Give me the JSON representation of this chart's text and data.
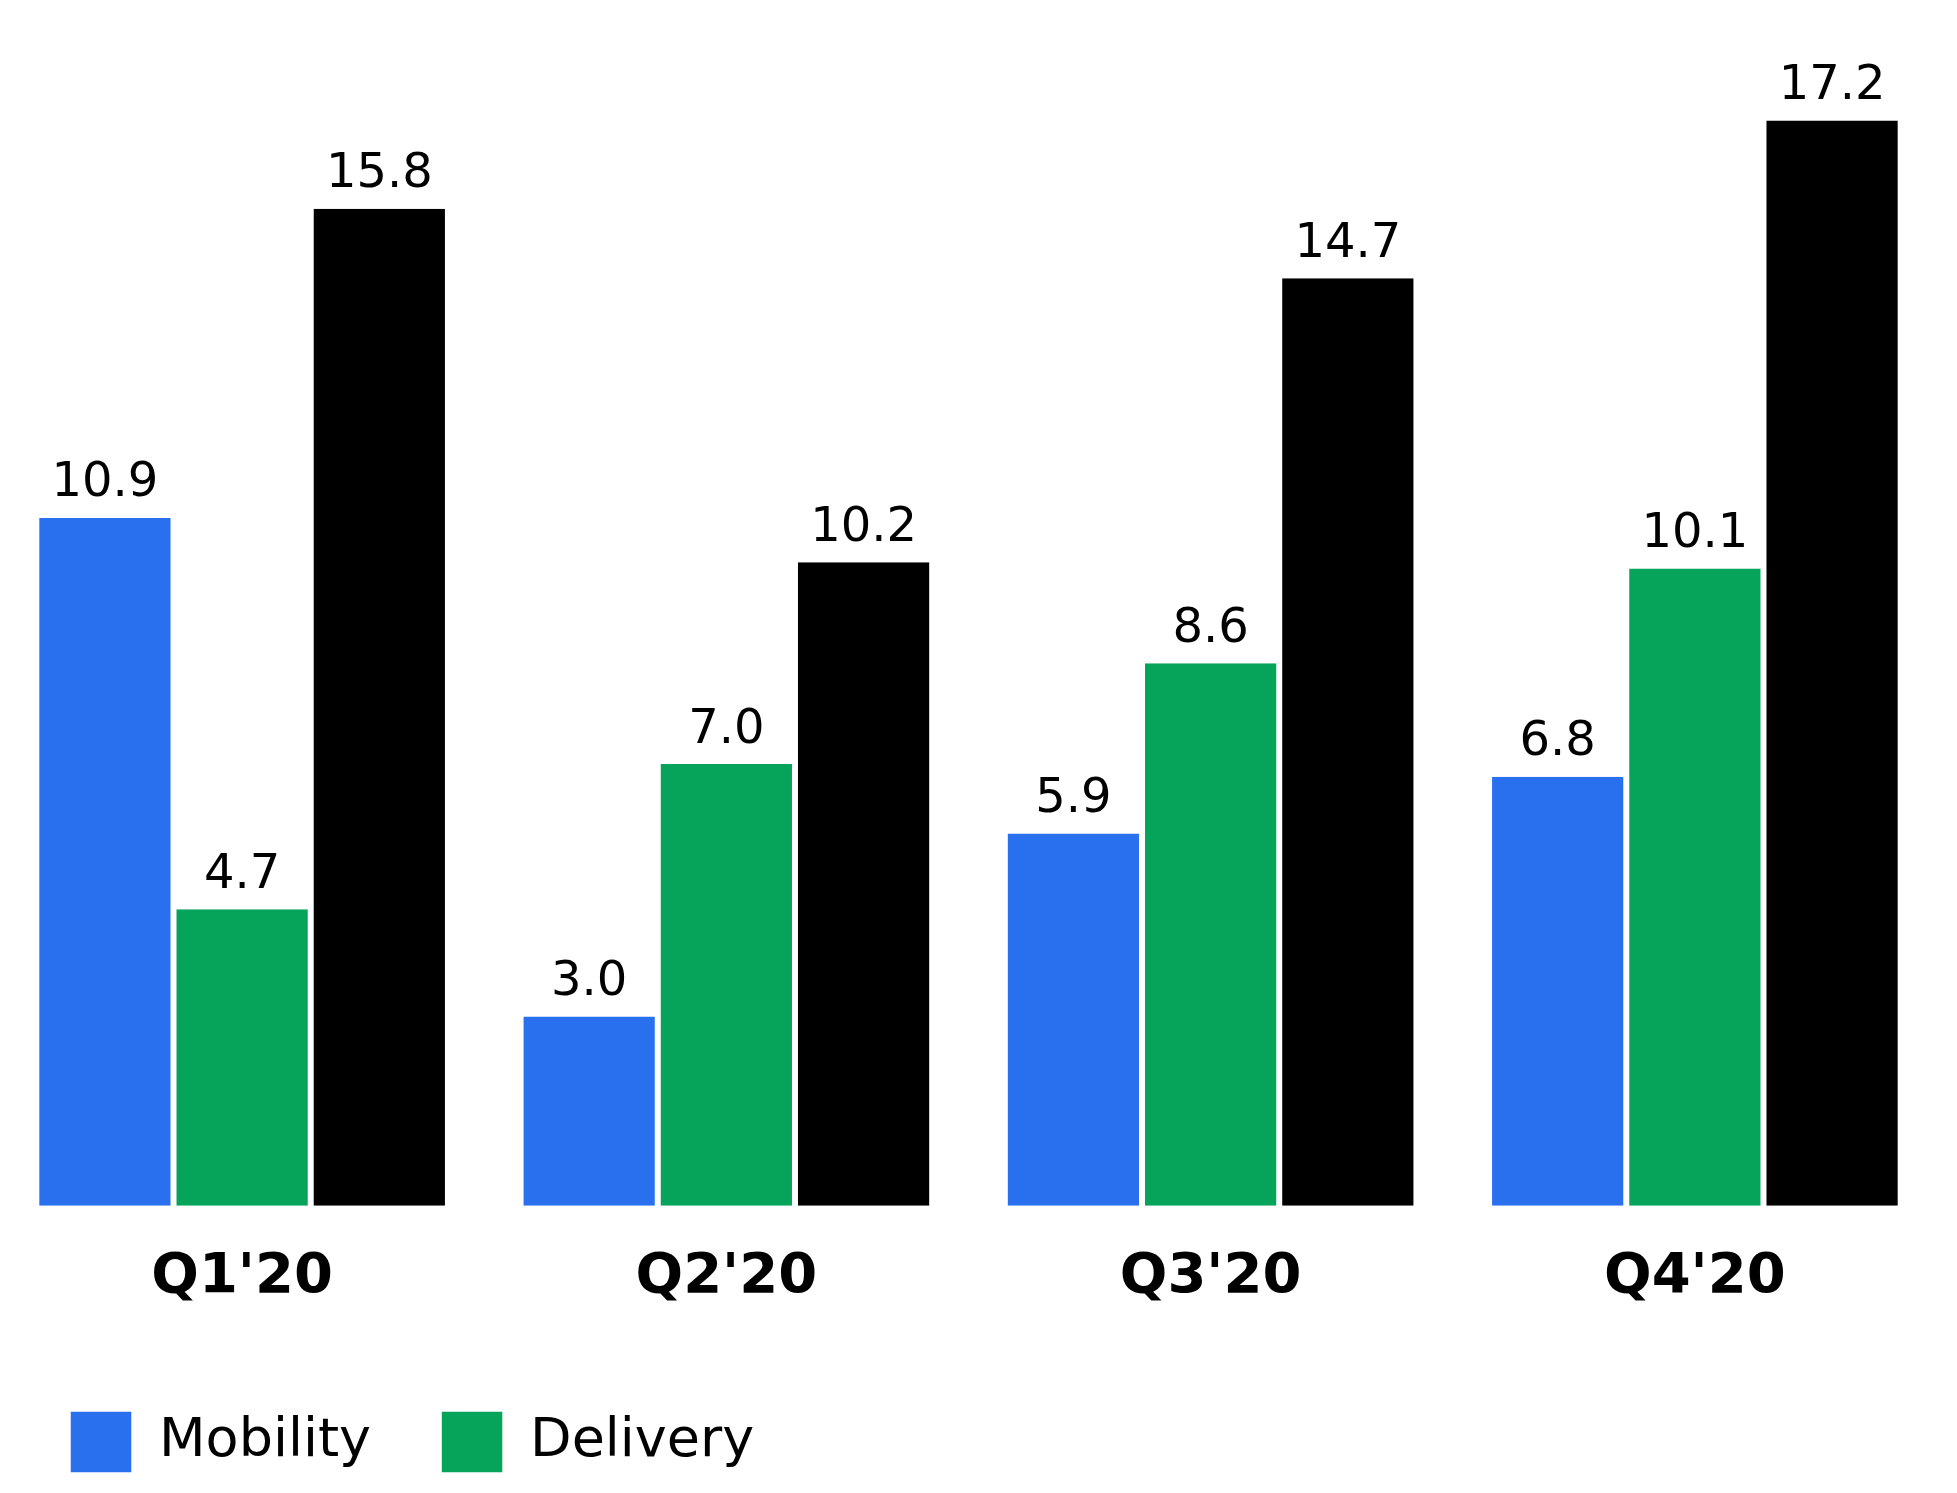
{
  "chart_data": {
    "type": "bar",
    "categories": [
      "Q1'20",
      "Q2'20",
      "Q3'20",
      "Q4'20"
    ],
    "series": [
      {
        "name": "Mobility",
        "color": "#2970ef",
        "values": [
          10.9,
          3.0,
          5.9,
          6.8
        ],
        "value_labels": [
          "10.9",
          "3.0",
          "5.9",
          "6.8"
        ]
      },
      {
        "name": "Delivery",
        "color": "#06a35a",
        "values": [
          4.7,
          7.0,
          8.6,
          10.1
        ],
        "value_labels": [
          "4.7",
          "7.0",
          "8.6",
          "10.1"
        ]
      },
      {
        "color": "#000000",
        "values": [
          15.8,
          10.2,
          14.7,
          17.2
        ],
        "value_labels": [
          "15.8",
          "10.2",
          "14.7",
          "17.2"
        ]
      }
    ],
    "legend": "bottom left",
    "grid": false
  }
}
